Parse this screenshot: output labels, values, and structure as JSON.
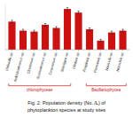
{
  "chart_data": {
    "type": "bar",
    "title": [
      "Fig. 2: Population density (No. /L) of",
      "phytoplankton species at study sites"
    ],
    "categories": [
      "Chlorella sp.",
      "Ankistrodesmus sp.",
      "Closterium sp.",
      "Scenedesmus sp.",
      "Cosmarium sp.",
      "Spirogyra sp.",
      "Ulothrix sp.",
      "Fragilaria sp.",
      "Pinnularia sp.",
      "Navicula sp.",
      "Nitzschia sp."
    ],
    "values": [
      62,
      42,
      40,
      55,
      48,
      90,
      82,
      45,
      20,
      38,
      42
    ],
    "errors": [
      3,
      3,
      3,
      3,
      3,
      3,
      3,
      3,
      3,
      3,
      3
    ],
    "color": "#cc1111",
    "ylim": [
      0,
      100
    ],
    "yticks": [],
    "tick_labels": "x",
    "grid": false,
    "groups": [
      {
        "label": "chlorophyceae",
        "start": 0,
        "end": 5
      },
      {
        "label": "Bacillariophycea",
        "start": 7,
        "end": 10
      }
    ]
  }
}
